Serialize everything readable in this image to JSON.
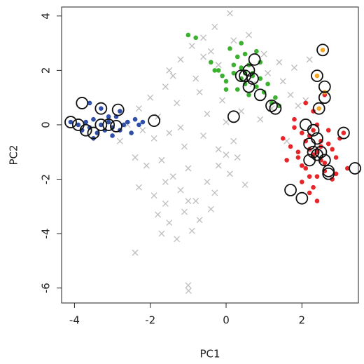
{
  "chart_data": {
    "type": "scatter",
    "xlabel": "PC1",
    "ylabel": "PC2",
    "xlim": [
      -4.34,
      3.49
    ],
    "ylim": [
      -6.55,
      4.33
    ],
    "xticks": [
      -4,
      -2,
      0,
      2
    ],
    "yticks": [
      -6,
      -4,
      -2,
      0,
      2,
      4
    ],
    "series": [
      {
        "marker": "x",
        "color": "#bdbdbd",
        "x": [
          0.1,
          -0.3,
          -0.6,
          -0.9,
          -1.2,
          -1.5,
          -0.4,
          0.2,
          0.6,
          1.0,
          1.4,
          1.8,
          -0.2,
          -0.8,
          -1.6,
          -2.0,
          -2.3,
          -1.8,
          -1.3,
          -0.7,
          -0.1,
          0.4,
          0.9,
          1.5,
          1.9,
          -2.2,
          -1.9,
          -1.5,
          -1.1,
          -0.6,
          -0.2,
          0.3,
          -2.4,
          -2.1,
          -1.7,
          -1.4,
          -1.0,
          -0.5,
          0.0,
          0.5,
          -2.3,
          -1.9,
          -1.6,
          -1.2,
          -0.8,
          -0.3,
          0.1,
          -1.8,
          -1.5,
          -1.1,
          -0.7,
          -1.7,
          -1.3,
          -0.9,
          -0.4,
          -2.4,
          -1.0,
          -0.99,
          -1.6,
          -1.2,
          -0.5,
          0.2,
          0.7,
          1.2,
          1.7,
          2.1,
          -2.6,
          -2.8,
          -1.4,
          -0.6,
          0.0,
          1.1,
          1.6,
          -1.0,
          -0.2,
          2.2
        ],
        "y": [
          4.1,
          3.6,
          3.2,
          2.9,
          2.4,
          2.0,
          2.7,
          3.1,
          3.3,
          2.6,
          2.3,
          2.1,
          2.2,
          1.7,
          1.4,
          1.0,
          0.6,
          0.3,
          0.8,
          1.2,
          0.9,
          0.5,
          0.2,
          1.6,
          0.7,
          -0.2,
          -0.5,
          -0.3,
          -0.8,
          -0.4,
          -0.9,
          -1.2,
          -1.2,
          -1.5,
          -1.3,
          -1.9,
          -1.6,
          -2.1,
          -1.1,
          -2.2,
          -2.3,
          -2.6,
          -2.9,
          -2.4,
          -2.8,
          -2.5,
          -1.8,
          -3.3,
          -3.6,
          -3.2,
          -3.5,
          -4.0,
          -4.2,
          -3.9,
          -3.1,
          -4.7,
          -5.9,
          -6.1,
          -2.1,
          -0.1,
          0.4,
          -0.6,
          1.5,
          0.6,
          1.1,
          0.9,
          0.0,
          -0.6,
          1.8,
          2.5,
          0.1,
          1.9,
          -0.6,
          -2.8,
          -1.5,
          2.4
        ]
      },
      {
        "marker": "dot",
        "color": "#2f4fa8",
        "x": [
          -4.1,
          -3.9,
          -3.8,
          -3.7,
          -3.6,
          -3.5,
          -3.4,
          -3.3,
          -3.2,
          -3.1,
          -3.0,
          -2.9,
          -2.8,
          -2.7,
          -2.6,
          -2.5,
          -2.4,
          -2.3,
          -2.2,
          -3.6,
          -3.3,
          -3.0,
          -2.8,
          -3.5,
          -3.1
        ],
        "y": [
          0.1,
          0.0,
          -0.2,
          0.1,
          -0.1,
          0.2,
          -0.3,
          0.0,
          -0.2,
          0.1,
          -0.1,
          0.3,
          -0.2,
          0.0,
          0.1,
          -0.3,
          0.2,
          0.0,
          0.1,
          0.8,
          0.6,
          -0.4,
          0.5,
          -0.5,
          0.3
        ]
      },
      {
        "marker": "dot",
        "color": "#3cb030",
        "x": [
          -0.4,
          -0.2,
          0.0,
          0.2,
          0.3,
          0.4,
          0.5,
          0.6,
          0.7,
          0.8,
          1.0,
          1.2,
          1.4,
          0.1,
          0.3,
          0.5,
          0.7,
          0.9,
          -0.1,
          0.4,
          0.6,
          1.1,
          0.2,
          0.8,
          0.5,
          -0.3,
          1.3,
          0.9,
          0.0,
          0.4,
          -1.0,
          -0.8
        ],
        "y": [
          2.3,
          2.0,
          1.6,
          1.9,
          2.5,
          2.1,
          1.5,
          2.2,
          1.8,
          1.4,
          1.2,
          0.8,
          0.7,
          2.8,
          1.3,
          2.6,
          1.9,
          1.7,
          1.8,
          3.0,
          1.1,
          1.5,
          2.2,
          2.7,
          1.9,
          2.0,
          1.0,
          2.3,
          1.3,
          1.7,
          3.3,
          3.2
        ]
      },
      {
        "marker": "dot",
        "color": "#e8262a",
        "x": [
          1.5,
          1.7,
          1.8,
          1.9,
          2.0,
          2.1,
          2.2,
          2.3,
          2.4,
          2.5,
          2.6,
          2.7,
          2.8,
          2.9,
          3.0,
          3.1,
          2.0,
          2.2,
          2.4,
          2.6,
          2.3,
          2.1,
          1.9,
          2.5,
          2.7,
          2.4,
          2.2,
          2.0,
          1.8,
          2.6,
          2.3,
          2.9,
          3.2,
          2.1,
          2.4,
          1.6,
          2.8,
          2.5,
          2.3,
          2.2
        ],
        "y": [
          -0.5,
          -0.8,
          0.2,
          -1.2,
          -0.3,
          -1.6,
          -0.9,
          -1.1,
          0.0,
          -0.6,
          -1.4,
          -0.2,
          -0.9,
          -1.8,
          -0.5,
          -0.3,
          -2.1,
          -2.5,
          -2.8,
          -1.7,
          0.5,
          0.8,
          -1.0,
          -1.3,
          -0.7,
          -1.9,
          -0.4,
          -1.5,
          -0.1,
          1.1,
          -2.3,
          -1.2,
          -1.6,
          -0.6,
          -1.0,
          -1.3,
          -2.0,
          -0.8,
          -0.2,
          -1.9
        ]
      },
      {
        "marker": "dot",
        "color": "#f5a623",
        "x": [
          2.55,
          2.4,
          2.6,
          2.45
        ],
        "y": [
          2.75,
          1.8,
          1.2,
          0.6
        ]
      },
      {
        "marker": "ring",
        "color": "#111111",
        "x": [
          -4.1,
          -3.8,
          -3.3,
          -2.85,
          -3.9,
          -3.7,
          -3.5,
          -3.3,
          -3.1,
          -2.9,
          -1.9,
          0.2,
          0.4,
          0.5,
          0.6,
          0.7,
          0.75,
          0.6,
          0.9,
          1.2,
          1.3,
          2.55,
          2.4,
          2.6,
          2.6,
          2.45,
          2.1,
          2.3,
          2.4,
          2.2,
          2.3,
          2.4,
          2.5,
          2.2,
          2.6,
          2.7,
          3.1,
          3.4,
          1.7,
          2.0,
          2.7
        ],
        "y": [
          0.1,
          0.8,
          0.6,
          0.55,
          0.0,
          -0.2,
          -0.3,
          0.0,
          0.0,
          -0.05,
          0.15,
          0.3,
          1.8,
          1.8,
          2.0,
          1.7,
          2.4,
          1.4,
          1.1,
          0.7,
          0.6,
          2.75,
          1.8,
          1.4,
          1.0,
          0.6,
          0.0,
          -0.2,
          -0.5,
          -0.7,
          -1.0,
          -1.1,
          -1.0,
          -1.3,
          -1.3,
          -1.7,
          -0.3,
          -1.6,
          -2.4,
          -2.7,
          -1.8
        ]
      }
    ]
  }
}
